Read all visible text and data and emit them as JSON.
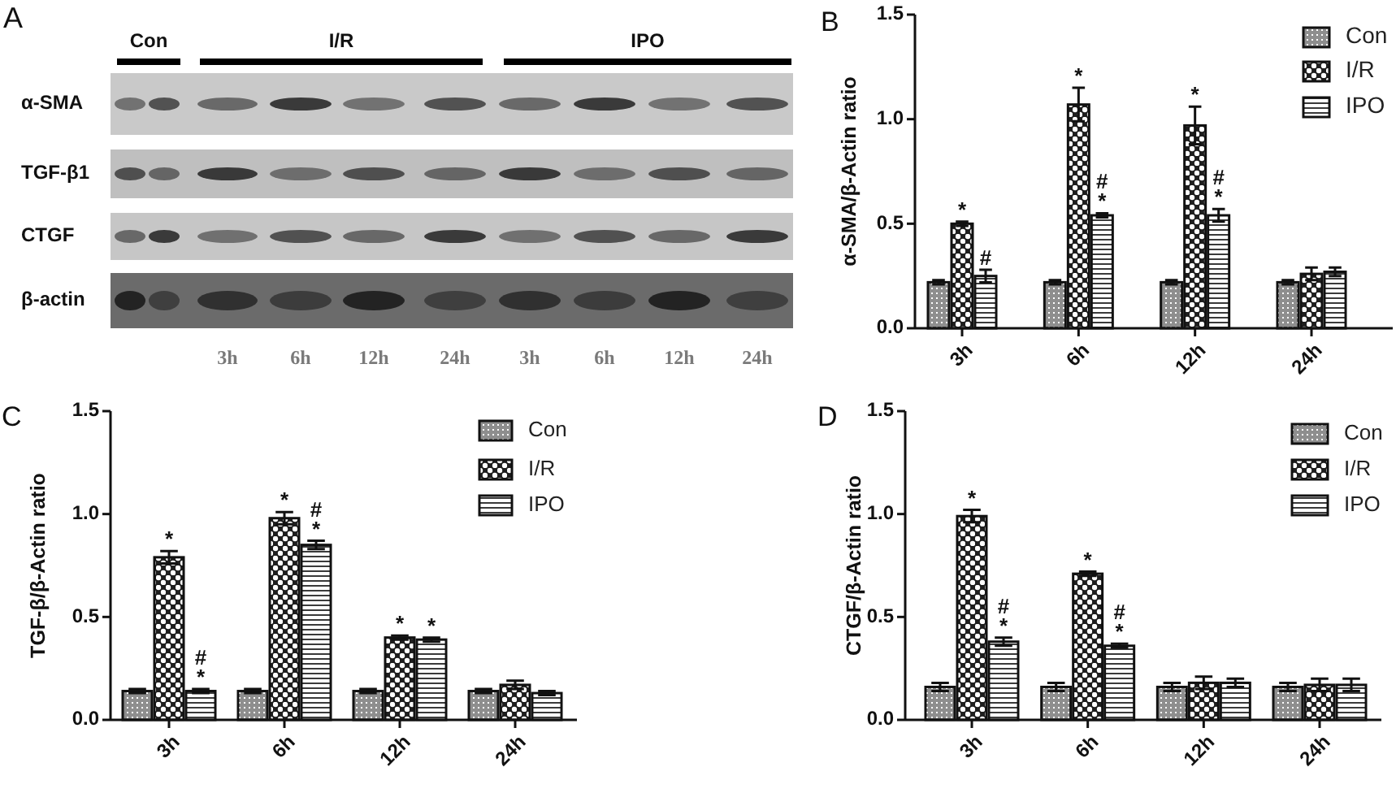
{
  "chart_data": [
    {
      "type": "other",
      "title": "A",
      "categories": [
        null,
        null,
        "3h",
        "6h",
        "12h",
        "24h",
        "3h",
        "6h",
        "12h",
        "24h"
      ],
      "y_categories": [
        "α-SMA",
        "TGF-β1",
        "CTGF",
        "β-actin"
      ],
      "annotations": [
        "Con",
        "I/R",
        "IPO"
      ]
    },
    {
      "type": "bar",
      "title": "B",
      "ylabel": "α-SMA/β-Actin ratio",
      "categories": [
        "3h",
        "6h",
        "12h",
        "24h"
      ],
      "series": [
        {
          "name": "Con",
          "color": "#8e8e8e",
          "values": [
            0.22,
            0.22,
            0.22,
            0.22
          ],
          "errors": [
            0.01,
            0.01,
            0.01,
            0.01
          ]
        },
        {
          "name": "I/R",
          "color": "#1e1e1e",
          "values": [
            0.5,
            1.07,
            0.97,
            0.26
          ],
          "errors": [
            0.01,
            0.08,
            0.09,
            0.03
          ],
          "value_labels": [
            "*",
            "*",
            "*",
            null
          ]
        },
        {
          "name": "IPO",
          "color": "#3a3a3a",
          "values": [
            0.25,
            0.54,
            0.54,
            0.27
          ],
          "errors": [
            0.03,
            0.01,
            0.03,
            0.02
          ],
          "value_labels": [
            "#",
            "#\n*",
            "#\n*",
            null
          ]
        }
      ],
      "ylim": [
        0,
        1.5
      ],
      "yticks": [
        {
          "value": 0,
          "label": "0.0"
        },
        {
          "value": 0.5,
          "label": "0.5"
        },
        {
          "value": 1,
          "label": "1.0"
        },
        {
          "value": 1.5,
          "label": "1.5"
        }
      ],
      "legend": "top right"
    },
    {
      "type": "bar",
      "title": "C",
      "ylabel": "TGF-β/β-Actin ratio",
      "categories": [
        "3h",
        "6h",
        "12h",
        "24h"
      ],
      "series": [
        {
          "name": "Con",
          "color": "#8e8e8e",
          "values": [
            0.14,
            0.14,
            0.14,
            0.14
          ],
          "errors": [
            0.01,
            0.01,
            0.01,
            0.01
          ]
        },
        {
          "name": "I/R",
          "color": "#1e1e1e",
          "values": [
            0.79,
            0.98,
            0.4,
            0.17
          ],
          "errors": [
            0.03,
            0.03,
            0.01,
            0.02
          ],
          "value_labels": [
            "*",
            "*",
            "*",
            null
          ]
        },
        {
          "name": "IPO",
          "color": "#3a3a3a",
          "values": [
            0.14,
            0.85,
            0.39,
            0.13
          ],
          "errors": [
            0.01,
            0.02,
            0.01,
            0.01
          ],
          "value_labels": [
            "#\n*",
            "#\n*",
            "*",
            null
          ]
        }
      ],
      "ylim": [
        0,
        1.5
      ],
      "yticks": [
        {
          "value": 0,
          "label": "0.0"
        },
        {
          "value": 0.5,
          "label": "0.5"
        },
        {
          "value": 1,
          "label": "1.0"
        },
        {
          "value": 1.5,
          "label": "1.5"
        }
      ],
      "legend": "top right"
    },
    {
      "type": "bar",
      "title": "D",
      "ylabel": "CTGF/β-Actin ratio",
      "categories": [
        "3h",
        "6h",
        "12h",
        "24h"
      ],
      "series": [
        {
          "name": "Con",
          "color": "#8e8e8e",
          "values": [
            0.16,
            0.16,
            0.16,
            0.16
          ],
          "errors": [
            0.02,
            0.02,
            0.02,
            0.02
          ]
        },
        {
          "name": "I/R",
          "color": "#1e1e1e",
          "values": [
            0.99,
            0.71,
            0.18,
            0.17
          ],
          "errors": [
            0.03,
            0.01,
            0.03,
            0.03
          ],
          "value_labels": [
            "*",
            "*",
            null,
            null
          ]
        },
        {
          "name": "IPO",
          "color": "#3a3a3a",
          "values": [
            0.38,
            0.36,
            0.18,
            0.17
          ],
          "errors": [
            0.02,
            0.01,
            0.02,
            0.03
          ],
          "value_labels": [
            "#\n*",
            "#\n*",
            null,
            null
          ]
        }
      ],
      "ylim": [
        0,
        1.5
      ],
      "yticks": [
        {
          "value": 0,
          "label": "0.0"
        },
        {
          "value": 0.5,
          "label": "0.5"
        },
        {
          "value": 1,
          "label": "1.0"
        },
        {
          "value": 1.5,
          "label": "1.5"
        }
      ],
      "legend": "top right"
    }
  ]
}
